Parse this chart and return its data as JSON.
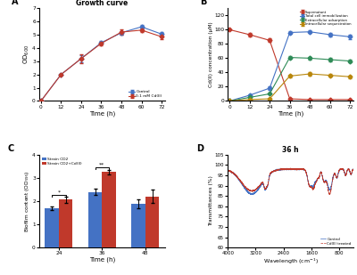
{
  "panel_A": {
    "title": "Growth curve",
    "xlabel": "Time (h)",
    "ylabel": "OD$_{600}$",
    "time": [
      0,
      12,
      24,
      36,
      48,
      60,
      72
    ],
    "control_mean": [
      0.0,
      2.0,
      3.2,
      4.4,
      5.15,
      5.6,
      5.05
    ],
    "control_err": [
      0.0,
      0.05,
      0.25,
      0.1,
      0.15,
      0.12,
      0.15
    ],
    "cd_mean": [
      0.0,
      2.0,
      3.2,
      4.35,
      5.2,
      5.35,
      4.85
    ],
    "cd_err": [
      0.0,
      0.05,
      0.35,
      0.12,
      0.18,
      0.15,
      0.2
    ],
    "control_color": "#4472C4",
    "cd_color": "#C0392B",
    "control_label": "Control",
    "cd_label": "0.1 mM Cd(II)",
    "ylim": [
      0,
      7
    ],
    "yticks": [
      0,
      1,
      2,
      3,
      4,
      5,
      6,
      7
    ],
    "xticks": [
      0,
      12,
      24,
      36,
      48,
      60,
      72
    ]
  },
  "panel_B": {
    "xlabel": "Time (h)",
    "ylabel": "Cd(II) concentration (μM)",
    "time": [
      0,
      12,
      24,
      36,
      48,
      60,
      72
    ],
    "supernatant_mean": [
      100,
      93,
      85,
      3,
      2,
      2,
      2
    ],
    "supernatant_err": [
      1.0,
      2.0,
      2.5,
      0.5,
      0.3,
      0.3,
      0.3
    ],
    "total_cell_mean": [
      0,
      8,
      18,
      96,
      97,
      93,
      90
    ],
    "total_cell_err": [
      0,
      1,
      2,
      2,
      2,
      2,
      3
    ],
    "extracellular_mean": [
      0,
      5,
      10,
      61,
      60,
      58,
      56
    ],
    "extracellular_err": [
      0,
      0.5,
      1,
      2,
      2,
      2,
      2
    ],
    "intracellular_mean": [
      0,
      2,
      3,
      35,
      38,
      36,
      34
    ],
    "intracellular_err": [
      0,
      0.3,
      0.5,
      2,
      2,
      2,
      2
    ],
    "supernatant_color": "#C0392B",
    "total_cell_color": "#4472C4",
    "extracellular_color": "#2E8B57",
    "intracellular_color": "#B8860B",
    "supernatant_label": "Supernatant",
    "total_cell_label": "Total cell immobilization",
    "extracellular_label": "Extracellular adsorption",
    "intracellular_label": "Intracellular sequestration",
    "ylim": [
      0,
      130
    ],
    "yticks": [
      0,
      20,
      40,
      60,
      80,
      100,
      120
    ],
    "xticks": [
      0,
      12,
      24,
      36,
      48,
      60,
      72
    ]
  },
  "panel_C": {
    "xlabel": "Time (h)",
    "ylabel": "Biofilm content (OD$_{595}$)",
    "time_labels": [
      "24",
      "36",
      "48"
    ],
    "cd2_mean": [
      1.7,
      2.4,
      1.88
    ],
    "cd2_err": [
      0.08,
      0.15,
      0.18
    ],
    "cd2_cd_mean": [
      2.06,
      3.25,
      2.2
    ],
    "cd2_cd_err": [
      0.12,
      0.1,
      0.28
    ],
    "cd2_color": "#4472C4",
    "cd2_cd_color": "#C0392B",
    "cd2_label": "Strain CD2",
    "cd2_cd_label": "Strain CD2+Cd(II)",
    "ylim": [
      0,
      4
    ],
    "yticks": [
      0,
      1,
      2,
      3,
      4
    ],
    "sig_24": "*",
    "sig_36": "**"
  },
  "panel_D": {
    "title": "36 h",
    "xlabel": "Wavelength (cm$^{-1}$)",
    "ylabel": "Transmittances (%)",
    "control_color": "#4472C4",
    "treated_color": "#C0392B",
    "control_label": "Control",
    "treated_label": "Cd(II) treated",
    "xlim": [
      400,
      4000
    ],
    "ylim": [
      60,
      105
    ],
    "xticks": [
      4000,
      3200,
      2400,
      1600,
      800
    ]
  }
}
